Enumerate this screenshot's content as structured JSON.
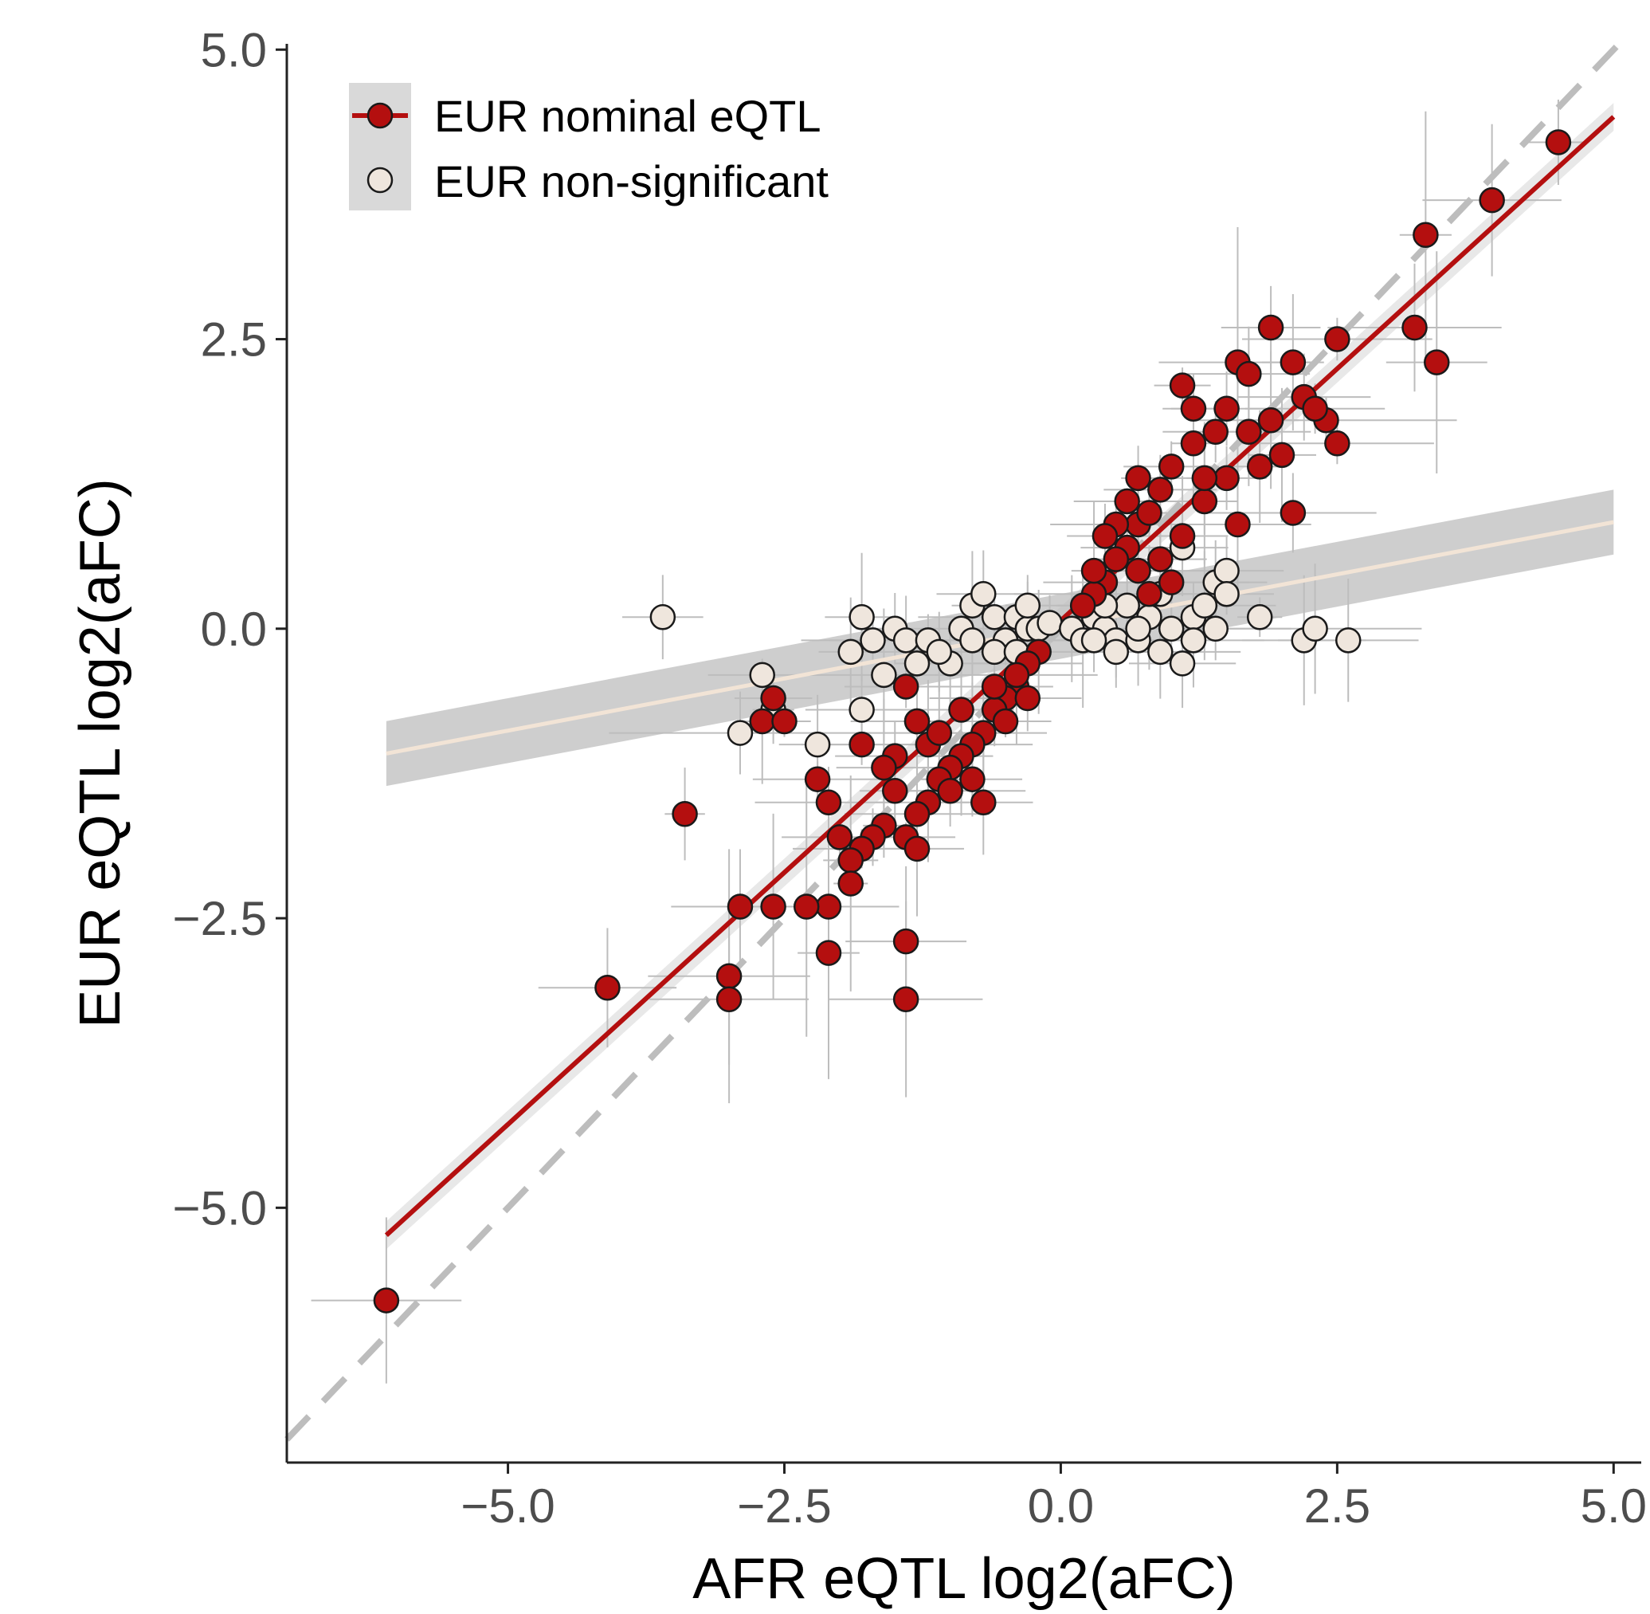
{
  "chart_data": {
    "type": "scatter",
    "title": "",
    "xlabel": "AFR eQTL log2(aFC)",
    "ylabel": "EUR eQTL log2(aFC)",
    "xlim": [
      -7.0,
      5.25
    ],
    "ylim": [
      -7.2,
      5.05
    ],
    "xticks": [
      -5.0,
      -2.5,
      0.0,
      2.5,
      5.0
    ],
    "yticks": [
      -5.0,
      -2.5,
      0.0,
      2.5,
      5.0
    ],
    "xtick_labels": [
      "−5.0",
      "−2.5",
      "0.0",
      "2.5",
      "5.0"
    ],
    "ytick_labels": [
      "−5.0",
      "−2.5",
      "0.0",
      "2.5",
      "5.0"
    ],
    "grid": false,
    "legend_position": "top-left",
    "reference_line": {
      "slope": 1,
      "intercept": 0,
      "style": "dashed",
      "color": "#bdbdbd"
    },
    "series": [
      {
        "name": "EUR nominal eQTL",
        "color": "#b40f0f",
        "fit": {
          "slope": 0.87,
          "intercept": 0.07,
          "x_range": [
            -6.1,
            5.0
          ]
        },
        "points": [
          [
            -6.1,
            -5.8
          ],
          [
            4.5,
            4.2
          ],
          [
            3.9,
            3.7
          ],
          [
            3.3,
            3.4
          ],
          [
            3.2,
            2.6
          ],
          [
            3.4,
            2.3
          ],
          [
            2.5,
            2.5
          ],
          [
            1.9,
            2.6
          ],
          [
            2.5,
            1.6
          ],
          [
            2.1,
            1.0
          ],
          [
            1.1,
            2.1
          ],
          [
            1.6,
            2.3
          ],
          [
            2.1,
            2.3
          ],
          [
            2.4,
            1.8
          ],
          [
            2.2,
            2.0
          ],
          [
            1.7,
            2.2
          ],
          [
            1.9,
            1.8
          ],
          [
            2.3,
            1.9
          ],
          [
            1.4,
            1.7
          ],
          [
            1.8,
            1.4
          ],
          [
            1.5,
            1.3
          ],
          [
            1.2,
            1.6
          ],
          [
            1.3,
            1.1
          ],
          [
            1.0,
            1.4
          ],
          [
            0.9,
            1.2
          ],
          [
            0.7,
            0.9
          ],
          [
            0.8,
            1.0
          ],
          [
            0.6,
            0.7
          ],
          [
            0.5,
            0.6
          ],
          [
            0.4,
            0.4
          ],
          [
            0.3,
            0.3
          ],
          [
            0.2,
            0.2
          ],
          [
            1.1,
            0.8
          ],
          [
            0.9,
            0.6
          ],
          [
            0.7,
            0.5
          ],
          [
            0.5,
            0.9
          ],
          [
            1.3,
            1.3
          ],
          [
            1.6,
            0.9
          ],
          [
            1.0,
            0.4
          ],
          [
            0.8,
            0.3
          ],
          [
            0.6,
            1.1
          ],
          [
            0.4,
            0.8
          ],
          [
            1.2,
            1.9
          ],
          [
            1.7,
            1.7
          ],
          [
            2.0,
            1.5
          ],
          [
            0.7,
            1.3
          ],
          [
            1.5,
            1.9
          ],
          [
            0.3,
            0.5
          ],
          [
            -0.2,
            -0.2
          ],
          [
            -0.3,
            -0.3
          ],
          [
            -0.4,
            -0.5
          ],
          [
            -0.5,
            -0.6
          ],
          [
            -0.6,
            -0.7
          ],
          [
            -0.7,
            -0.9
          ],
          [
            -0.8,
            -1.0
          ],
          [
            -0.9,
            -1.1
          ],
          [
            -1.0,
            -1.2
          ],
          [
            -1.1,
            -1.3
          ],
          [
            -1.2,
            -1.5
          ],
          [
            -1.3,
            -1.6
          ],
          [
            -1.4,
            -1.8
          ],
          [
            -1.5,
            -1.4
          ],
          [
            -1.6,
            -1.7
          ],
          [
            -1.7,
            -1.8
          ],
          [
            -1.8,
            -1.9
          ],
          [
            -1.9,
            -2.0
          ],
          [
            -2.0,
            -1.8
          ],
          [
            -2.2,
            -1.3
          ],
          [
            -2.1,
            -1.5
          ],
          [
            -1.9,
            -2.2
          ],
          [
            -2.1,
            -2.4
          ],
          [
            -2.3,
            -2.4
          ],
          [
            -2.6,
            -2.4
          ],
          [
            -2.9,
            -2.4
          ],
          [
            -2.7,
            -0.8
          ],
          [
            -2.5,
            -0.8
          ],
          [
            -2.6,
            -0.6
          ],
          [
            -3.4,
            -1.6
          ],
          [
            -4.1,
            -3.1
          ],
          [
            -3.0,
            -3.0
          ],
          [
            -3.0,
            -3.2
          ],
          [
            -2.1,
            -2.8
          ],
          [
            -1.4,
            -2.7
          ],
          [
            -1.4,
            -3.2
          ],
          [
            -1.3,
            -1.9
          ],
          [
            -1.0,
            -1.4
          ],
          [
            -0.7,
            -1.5
          ],
          [
            -1.2,
            -1.0
          ],
          [
            -0.9,
            -0.7
          ],
          [
            -0.6,
            -0.5
          ],
          [
            -0.5,
            -0.8
          ],
          [
            -0.4,
            -0.4
          ],
          [
            -1.5,
            -1.1
          ],
          [
            -1.3,
            -0.8
          ],
          [
            -0.8,
            -1.3
          ],
          [
            -1.1,
            -0.9
          ],
          [
            -0.3,
            -0.6
          ],
          [
            -1.6,
            -1.2
          ],
          [
            -1.8,
            -1.0
          ],
          [
            -1.4,
            -0.5
          ]
        ]
      },
      {
        "name": "EUR non-significant",
        "color": "#efe6dd",
        "fit": {
          "slope": 0.18,
          "intercept": 0.02,
          "x_range": [
            -6.1,
            5.0
          ]
        },
        "points": [
          [
            -3.6,
            0.1
          ],
          [
            -2.7,
            -0.4
          ],
          [
            -2.9,
            -0.9
          ],
          [
            -2.6,
            -0.7
          ],
          [
            -2.2,
            -1.0
          ],
          [
            -1.9,
            -0.2
          ],
          [
            -1.8,
            0.1
          ],
          [
            -1.8,
            -0.7
          ],
          [
            -1.7,
            -0.1
          ],
          [
            -1.5,
            0.0
          ],
          [
            -1.4,
            -0.1
          ],
          [
            -1.3,
            -0.3
          ],
          [
            -1.2,
            -0.1
          ],
          [
            -1.0,
            -0.3
          ],
          [
            -0.9,
            0.0
          ],
          [
            -0.8,
            0.2
          ],
          [
            -0.7,
            0.3
          ],
          [
            -0.6,
            0.1
          ],
          [
            -0.5,
            -0.1
          ],
          [
            -0.4,
            0.1
          ],
          [
            -0.3,
            0.0
          ],
          [
            -0.2,
            0.0
          ],
          [
            -0.1,
            0.05
          ],
          [
            -0.6,
            -0.2
          ],
          [
            -1.1,
            -0.2
          ],
          [
            -0.8,
            -0.1
          ],
          [
            -1.6,
            -0.4
          ],
          [
            -1.3,
            -0.8
          ],
          [
            -0.4,
            -0.2
          ],
          [
            -0.3,
            0.2
          ],
          [
            0.1,
            0.0
          ],
          [
            0.2,
            -0.1
          ],
          [
            0.3,
            0.1
          ],
          [
            0.4,
            0.0
          ],
          [
            0.5,
            -0.1
          ],
          [
            0.6,
            0.2
          ],
          [
            0.7,
            -0.1
          ],
          [
            0.8,
            0.1
          ],
          [
            0.9,
            -0.2
          ],
          [
            1.0,
            0.0
          ],
          [
            1.1,
            -0.3
          ],
          [
            1.2,
            0.1
          ],
          [
            1.3,
            0.2
          ],
          [
            1.4,
            0.4
          ],
          [
            1.5,
            0.5
          ],
          [
            1.8,
            0.1
          ],
          [
            2.2,
            -0.1
          ],
          [
            2.3,
            0.0
          ],
          [
            2.6,
            -0.1
          ],
          [
            1.1,
            0.7
          ],
          [
            1.4,
            0.0
          ],
          [
            0.5,
            -0.2
          ],
          [
            0.3,
            -0.1
          ],
          [
            0.9,
            0.3
          ],
          [
            1.2,
            -0.1
          ],
          [
            0.7,
            0.0
          ],
          [
            1.5,
            0.3
          ],
          [
            0.4,
            0.2
          ]
        ]
      }
    ]
  },
  "legend": {
    "items": [
      {
        "label": "EUR nominal eQTL",
        "color": "#b40f0f"
      },
      {
        "label": "EUR non-significant",
        "color": "#efe6dd"
      }
    ]
  }
}
